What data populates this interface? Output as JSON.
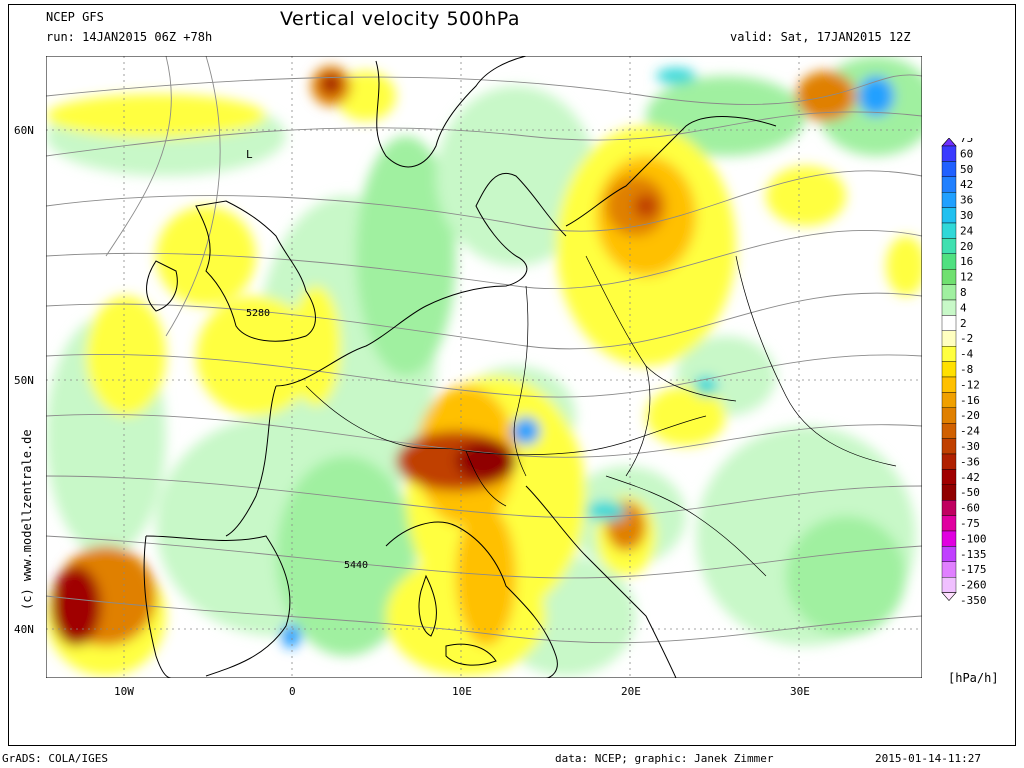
{
  "header": {
    "model": "NCEP GFS",
    "run": "run: 14JAN2015 06Z +78h",
    "title": "Vertical velocity 500hPa",
    "valid": "valid: Sat, 17JAN2015 12Z"
  },
  "footer": {
    "grads": "GrADS: COLA/IGES",
    "credit": "data: NCEP; graphic: Janek Zimmer",
    "timestamp": "2015-01-14-11:27"
  },
  "side_credit": "(c)  www.modellzentrale.de",
  "axes": {
    "lat_labels": [
      {
        "text": "60N",
        "value": 60
      },
      {
        "text": "50N",
        "value": 50
      },
      {
        "text": "40N",
        "value": 40
      }
    ],
    "lon_labels": [
      {
        "text": "10W",
        "value": -10
      },
      {
        "text": "0",
        "value": 0
      },
      {
        "text": "10E",
        "value": 10
      },
      {
        "text": "20E",
        "value": 20
      },
      {
        "text": "30E",
        "value": 30
      }
    ],
    "lon_range": [
      -14.5,
      37.5
    ],
    "lat_range": [
      38,
      63
    ]
  },
  "contour_labels": [
    "5280",
    "5440",
    "L"
  ],
  "colorbar": {
    "unit": "[hPa/h]",
    "levels": [
      "75",
      "60",
      "50",
      "42",
      "36",
      "30",
      "24",
      "20",
      "16",
      "12",
      "8",
      "4",
      "2",
      "-2",
      "-4",
      "-8",
      "-12",
      "-16",
      "-20",
      "-24",
      "-30",
      "-36",
      "-42",
      "-50",
      "-60",
      "-75",
      "-100",
      "-135",
      "-175",
      "-260",
      "-350"
    ],
    "colors": [
      "#7030ff",
      "#3a3aff",
      "#2060ff",
      "#2080ff",
      "#20a0ff",
      "#20c0f0",
      "#30d8d8",
      "#40e0b0",
      "#50e080",
      "#70e070",
      "#a0f0a0",
      "#c8f8c8",
      "#ffffff",
      "#ffffc0",
      "#ffff40",
      "#ffe000",
      "#ffc000",
      "#f0a000",
      "#e08000",
      "#d06000",
      "#c04000",
      "#b02000",
      "#a00000",
      "#900000",
      "#c00060",
      "#e000a0",
      "#e000e0",
      "#c040ff",
      "#e080ff",
      "#f0c0ff",
      "#ffe0ff"
    ]
  },
  "map": {
    "land_color": "#ffffff",
    "sea_color": "#ffffff",
    "colors": {
      "light_green": "#c8f8c8",
      "green": "#a0f0a0",
      "yellow": "#ffff40",
      "amber": "#ffc000",
      "orange": "#e08000",
      "dark_orange": "#c04000",
      "brown": "#a00000",
      "maroon": "#900000",
      "blue": "#20a0ff",
      "cyan": "#30d8d8"
    }
  }
}
